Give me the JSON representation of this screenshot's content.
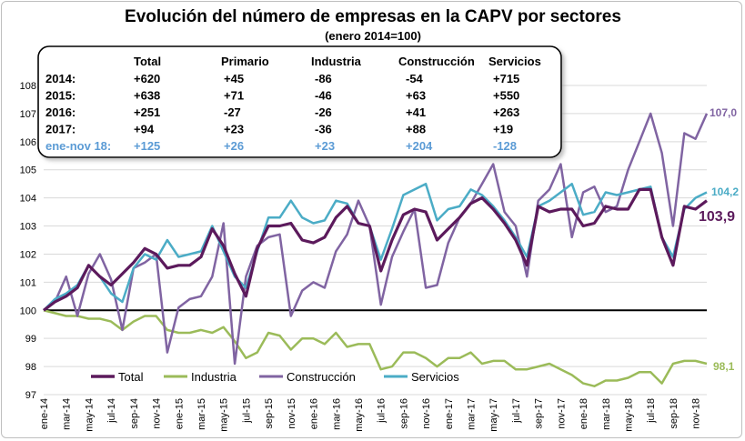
{
  "chart_data": {
    "type": "line",
    "title": "Evolución del número de empresas en la CAPV por sectores",
    "subtitle": "(enero 2014=100)",
    "ylim": [
      97,
      108
    ],
    "yticks": [
      "97",
      "98",
      "99",
      "100",
      "101",
      "102",
      "103",
      "104",
      "105",
      "106",
      "107",
      "108"
    ],
    "baseline": 100,
    "xtick_labels": [
      "ene-14",
      "mar-14",
      "may-14",
      "jul-14",
      "sep-14",
      "nov-14",
      "ene-15",
      "mar-15",
      "may-15",
      "jul-15",
      "sep-15",
      "nov-15",
      "ene-16",
      "mar-16",
      "may-16",
      "jul-16",
      "sep-16",
      "nov-16",
      "ene-17",
      "mar-17",
      "may-17",
      "jul-17",
      "sep-17",
      "nov-17",
      "ene-18",
      "mar-18",
      "may-18",
      "jul-18",
      "sep-18",
      "nov-18"
    ],
    "series": [
      {
        "name": "Total",
        "color": "#5c1a5c",
        "width": 3.2,
        "values": [
          100.0,
          100.3,
          100.5,
          100.8,
          101.6,
          101.2,
          100.9,
          101.3,
          101.7,
          102.2,
          102.0,
          101.5,
          101.6,
          101.6,
          101.9,
          102.9,
          102.3,
          101.3,
          100.5,
          102.2,
          103.0,
          103.0,
          103.1,
          102.5,
          102.4,
          102.6,
          103.3,
          103.7,
          103.1,
          103.0,
          101.4,
          102.5,
          103.4,
          103.6,
          103.5,
          102.5,
          102.9,
          103.3,
          103.8,
          104.0,
          103.6,
          103.1,
          102.5,
          101.6,
          103.7,
          103.5,
          103.6,
          103.6,
          103.0,
          103.1,
          103.7,
          103.6,
          103.6,
          104.3,
          104.3,
          102.6,
          101.6,
          103.7,
          103.6,
          103.9
        ]
      },
      {
        "name": "Industria",
        "color": "#9bbb59",
        "width": 2.5,
        "values": [
          100.0,
          99.9,
          99.8,
          99.8,
          99.7,
          99.7,
          99.6,
          99.3,
          99.6,
          99.8,
          99.8,
          99.3,
          99.2,
          99.2,
          99.3,
          99.2,
          99.4,
          98.9,
          98.3,
          98.5,
          99.2,
          99.1,
          98.6,
          99.0,
          99.0,
          98.8,
          99.2,
          98.7,
          98.8,
          98.8,
          97.9,
          98.0,
          98.5,
          98.5,
          98.3,
          98.0,
          98.3,
          98.3,
          98.5,
          98.1,
          98.2,
          98.2,
          97.9,
          97.9,
          98.0,
          98.1,
          97.9,
          97.7,
          97.4,
          97.3,
          97.5,
          97.5,
          97.6,
          97.8,
          97.8,
          97.4,
          98.1,
          98.2,
          98.2,
          98.1
        ]
      },
      {
        "name": "Construcción",
        "color": "#8064a2",
        "width": 2.5,
        "values": [
          100.0,
          100.3,
          101.2,
          99.8,
          101.3,
          102.0,
          101.1,
          99.3,
          101.5,
          101.7,
          102.0,
          98.5,
          100.1,
          100.4,
          100.5,
          101.2,
          103.1,
          98.1,
          101.2,
          102.3,
          102.6,
          102.7,
          99.8,
          100.7,
          101.0,
          100.8,
          102.1,
          102.7,
          103.9,
          103.0,
          100.2,
          101.9,
          102.8,
          103.6,
          100.8,
          100.9,
          102.4,
          103.3,
          103.8,
          104.5,
          105.2,
          103.5,
          103.0,
          101.2,
          103.9,
          104.3,
          105.2,
          102.6,
          104.2,
          104.4,
          103.5,
          103.7,
          105.0,
          106.0,
          107.0,
          105.6,
          103.0,
          106.3,
          106.1,
          107.0
        ]
      },
      {
        "name": "Servicios",
        "color": "#4bacc6",
        "width": 2.5,
        "values": [
          100.0,
          100.4,
          100.6,
          100.9,
          101.6,
          101.2,
          100.6,
          100.3,
          101.5,
          102.0,
          101.8,
          102.5,
          101.9,
          102.0,
          102.1,
          103.0,
          102.1,
          101.2,
          100.8,
          102.1,
          103.3,
          103.3,
          103.9,
          103.3,
          103.1,
          103.2,
          103.9,
          103.8,
          103.1,
          103.0,
          101.8,
          102.9,
          104.1,
          104.3,
          104.5,
          103.2,
          103.6,
          103.7,
          104.3,
          104.1,
          103.7,
          103.2,
          102.6,
          101.9,
          103.7,
          103.9,
          104.2,
          104.5,
          103.4,
          103.5,
          104.2,
          104.1,
          104.2,
          104.3,
          104.4,
          102.6,
          101.9,
          103.6,
          104.0,
          104.2
        ]
      }
    ],
    "end_labels": [
      "103,9",
      "98,1",
      "107,0",
      "104,2"
    ],
    "legend": [
      "Total",
      "Industria",
      "Construcción",
      "Servicios"
    ]
  },
  "table": {
    "headers": [
      "Total",
      "Primario",
      "Industria",
      "Construcción",
      "Servicios"
    ],
    "rows": [
      {
        "label": "2014:",
        "cells": [
          "+620",
          "+45",
          "-86",
          "-54",
          "+715"
        ]
      },
      {
        "label": "2015:",
        "cells": [
          "+638",
          "+71",
          "-46",
          "+63",
          "+550"
        ]
      },
      {
        "label": "2016:",
        "cells": [
          "+251",
          "-27",
          "-26",
          "+41",
          "+263"
        ]
      },
      {
        "label": "2017:",
        "cells": [
          "+94",
          "+23",
          "-36",
          "+88",
          "+19"
        ]
      },
      {
        "label": "ene-nov 18:",
        "cells": [
          "+125",
          "+26",
          "+23",
          "+204",
          "-128"
        ]
      }
    ]
  }
}
